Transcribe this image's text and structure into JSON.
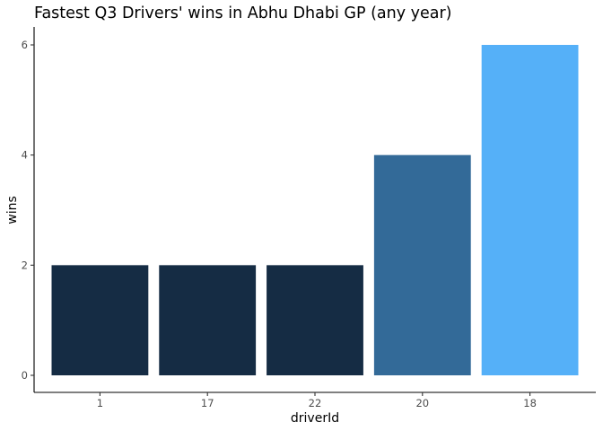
{
  "chart_data": {
    "type": "bar",
    "title": "Fastest Q3 Drivers' wins in Abhu Dhabi GP (any year)",
    "xlabel": "driverId",
    "ylabel": "wins",
    "categories": [
      "1",
      "17",
      "22",
      "20",
      "18"
    ],
    "values": [
      2,
      2,
      2,
      4,
      6
    ],
    "colors": [
      "#152c44",
      "#152c44",
      "#152c44",
      "#336a98",
      "#55b0f8"
    ],
    "ylim": [
      0,
      6
    ],
    "yticks": [
      0,
      2,
      4,
      6
    ],
    "grid": false,
    "legend": "none"
  }
}
